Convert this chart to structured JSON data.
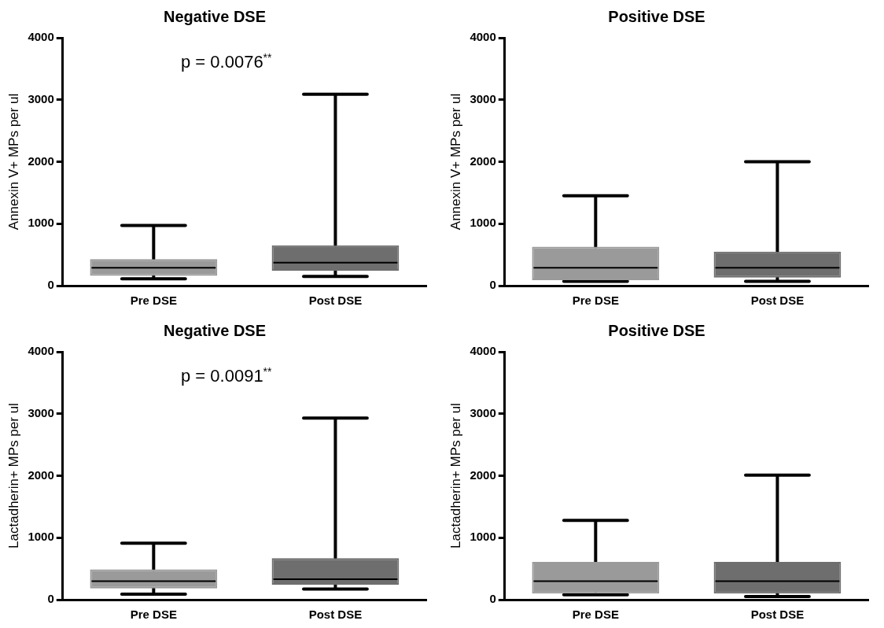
{
  "chart_data": [
    {
      "type": "box",
      "title": "Negative DSE",
      "ylabel": "Annexin V+ MPs per ul",
      "categories": [
        "Pre DSE",
        "Post DSE"
      ],
      "colors": [
        "#9a9a9a",
        "#6e6e6e"
      ],
      "boxes": [
        {
          "low": 110,
          "q1": 160,
          "median": 290,
          "q3": 430,
          "high": 970
        },
        {
          "low": 150,
          "q1": 240,
          "median": 370,
          "q3": 650,
          "high": 3090
        }
      ],
      "ylim": [
        0,
        4000
      ],
      "yticks": [
        0,
        1000,
        2000,
        3000,
        4000
      ],
      "grid": false,
      "legend": false,
      "annotations": [
        "p = 0.0076$^{**}$"
      ]
    },
    {
      "type": "box",
      "title": "Positive DSE",
      "ylabel": "Annexin V+ MPs per ul",
      "categories": [
        "Pre DSE",
        "Post DSE"
      ],
      "colors": [
        "#9a9a9a",
        "#6e6e6e"
      ],
      "boxes": [
        {
          "low": 70,
          "q1": 90,
          "median": 290,
          "q3": 630,
          "high": 1450
        },
        {
          "low": 70,
          "q1": 130,
          "median": 290,
          "q3": 550,
          "high": 2000
        }
      ],
      "ylim": [
        0,
        4000
      ],
      "yticks": [
        0,
        1000,
        2000,
        3000,
        4000
      ],
      "grid": false,
      "legend": false
    },
    {
      "type": "box",
      "title": "Negative DSE",
      "ylabel": "Lactadherin+ MPs per ul",
      "categories": [
        "Pre DSE",
        "Post DSE"
      ],
      "colors": [
        "#9a9a9a",
        "#6e6e6e"
      ],
      "boxes": [
        {
          "low": 90,
          "q1": 180,
          "median": 300,
          "q3": 490,
          "high": 910
        },
        {
          "low": 170,
          "q1": 240,
          "median": 330,
          "q3": 670,
          "high": 2930
        }
      ],
      "ylim": [
        0,
        4000
      ],
      "yticks": [
        0,
        1000,
        2000,
        3000,
        4000
      ],
      "grid": false,
      "legend": false,
      "annotations": [
        "p = 0.0091$^{**}$"
      ]
    },
    {
      "type": "box",
      "title": "Positive DSE",
      "ylabel": "Lactadherin+ MPs per ul",
      "categories": [
        "Pre DSE",
        "Post DSE"
      ],
      "colors": [
        "#9a9a9a",
        "#6e6e6e"
      ],
      "boxes": [
        {
          "low": 80,
          "q1": 100,
          "median": 300,
          "q3": 610,
          "high": 1280
        },
        {
          "low": 50,
          "q1": 100,
          "median": 300,
          "q3": 610,
          "high": 2010
        }
      ],
      "ylim": [
        0,
        4000
      ],
      "yticks": [
        0,
        1000,
        2000,
        3000,
        4000
      ],
      "grid": false,
      "legend": false
    }
  ]
}
